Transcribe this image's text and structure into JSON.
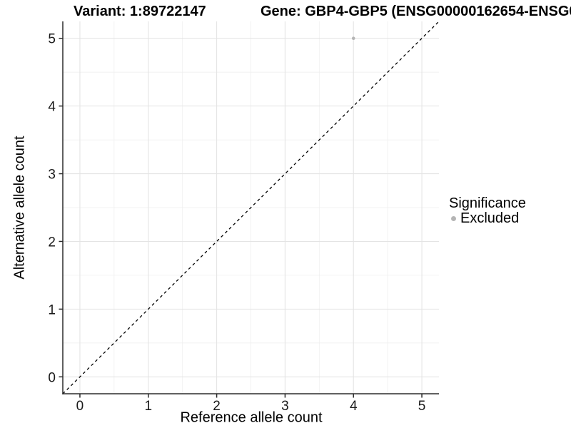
{
  "chart_data": {
    "type": "scatter",
    "title_left": "Variant: 1:89722147",
    "title_right": "Gene: GBP4-GBP5 (ENSG00000162654-ENSG0",
    "xlabel": "Reference allele count",
    "ylabel": "Alternative allele count",
    "xlim": [
      -0.25,
      5.25
    ],
    "ylim": [
      -0.25,
      5.25
    ],
    "xticks": [
      0,
      1,
      2,
      3,
      4,
      5
    ],
    "yticks": [
      0,
      1,
      2,
      3,
      4,
      5
    ],
    "grid": true,
    "minor_grid": true,
    "reference_line": {
      "kind": "identity y=x",
      "style": "dashed",
      "color": "#000000"
    },
    "series": [
      {
        "name": "Excluded",
        "color": "#b5b5b5",
        "points": [
          {
            "x": 4,
            "y": 5
          }
        ]
      }
    ],
    "legend": {
      "title": "Significance",
      "position": "right",
      "items": [
        {
          "label": "Excluded",
          "color": "#b5b5b5"
        }
      ]
    }
  },
  "colors": {
    "background": "#ffffff",
    "axis_line": "#2b2b2b",
    "tick_label": "#1a1a1a",
    "grid_major": "#e4e4e4",
    "grid_minor": "#efefef",
    "point": "#b5b5b5",
    "dashed_line": "#000000"
  }
}
